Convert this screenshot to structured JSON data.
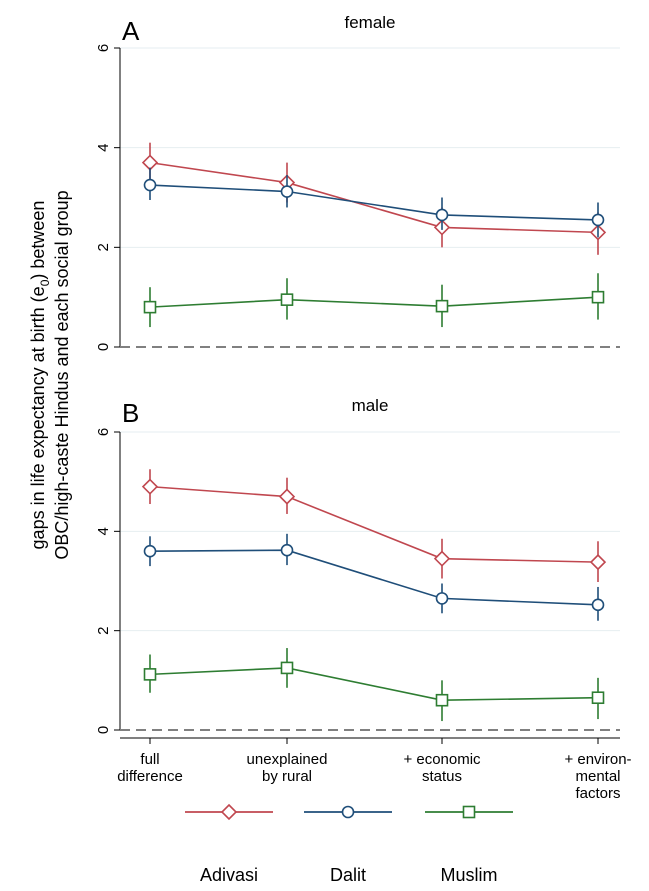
{
  "chart_data": {
    "type": "line",
    "ylabel_line1": "gaps in life expectancy at birth (e",
    "ylabel_sub": "0",
    "ylabel_line1_end": ") between",
    "ylabel_line2": "OBC/high-caste Hindus and each social group",
    "categories": [
      [
        "full",
        "difference"
      ],
      [
        "unexplained",
        "by rural"
      ],
      [
        "+ economic",
        "status"
      ],
      [
        "+ environ-",
        "mental",
        "factors"
      ]
    ],
    "ylim": [
      0,
      6
    ],
    "yticks": [
      0,
      2,
      4,
      6
    ],
    "reference_line": 0,
    "grid": true,
    "legend_position": "bottom",
    "panels": [
      {
        "letter": "A",
        "title": "female",
        "series": [
          {
            "name": "Adivasi",
            "color": "#c0474f",
            "marker": "diamond",
            "values": [
              3.7,
              3.3,
              2.4,
              2.3
            ],
            "ci": [
              [
                3.3,
                4.1
              ],
              [
                2.9,
                3.7
              ],
              [
                2.0,
                2.8
              ],
              [
                1.85,
                2.7
              ]
            ]
          },
          {
            "name": "Dalit",
            "color": "#1f4e79",
            "marker": "circle",
            "values": [
              3.25,
              3.12,
              2.65,
              2.55
            ],
            "ci": [
              [
                2.95,
                3.6
              ],
              [
                2.8,
                3.45
              ],
              [
                2.35,
                3.0
              ],
              [
                2.2,
                2.9
              ]
            ]
          },
          {
            "name": "Muslim",
            "color": "#2e7d32",
            "marker": "square",
            "values": [
              0.8,
              0.95,
              0.82,
              1.0
            ],
            "ci": [
              [
                0.4,
                1.2
              ],
              [
                0.55,
                1.38
              ],
              [
                0.4,
                1.25
              ],
              [
                0.55,
                1.48
              ]
            ]
          }
        ]
      },
      {
        "letter": "B",
        "title": "male",
        "series": [
          {
            "name": "Adivasi",
            "color": "#c0474f",
            "marker": "diamond",
            "values": [
              4.9,
              4.7,
              3.45,
              3.38
            ],
            "ci": [
              [
                4.55,
                5.25
              ],
              [
                4.35,
                5.08
              ],
              [
                3.05,
                3.85
              ],
              [
                2.98,
                3.8
              ]
            ]
          },
          {
            "name": "Dalit",
            "color": "#1f4e79",
            "marker": "circle",
            "values": [
              3.6,
              3.62,
              2.65,
              2.52
            ],
            "ci": [
              [
                3.3,
                3.9
              ],
              [
                3.32,
                3.95
              ],
              [
                2.35,
                2.95
              ],
              [
                2.2,
                2.88
              ]
            ]
          },
          {
            "name": "Muslim",
            "color": "#2e7d32",
            "marker": "square",
            "values": [
              1.12,
              1.25,
              0.6,
              0.65
            ],
            "ci": [
              [
                0.75,
                1.52
              ],
              [
                0.85,
                1.65
              ],
              [
                0.18,
                1.0
              ],
              [
                0.22,
                1.05
              ]
            ]
          }
        ]
      }
    ],
    "legend": [
      {
        "label": "Adivasi",
        "color": "#c0474f",
        "marker": "diamond"
      },
      {
        "label": "Dalit",
        "color": "#1f4e79",
        "marker": "circle"
      },
      {
        "label": "Muslim",
        "color": "#2e7d32",
        "marker": "square"
      }
    ]
  }
}
